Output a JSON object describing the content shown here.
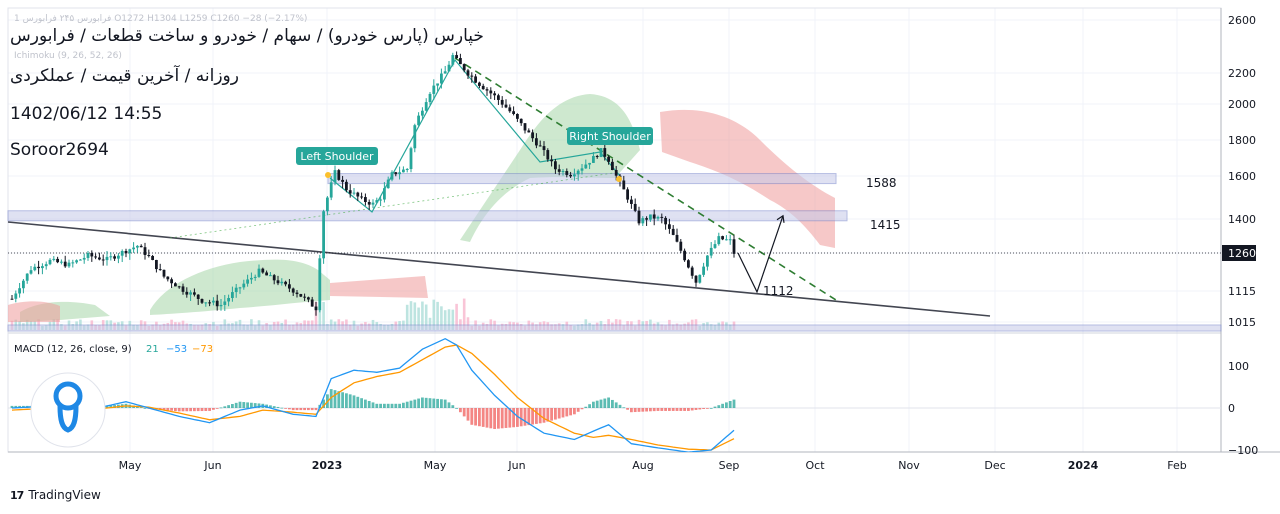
{
  "header": {
    "title": "خپارس (پارس خودرو) / سهام / خودرو و ساخت قطعات / فرابورس",
    "subtitle": "روزانه / آخرین قیمت / عملکردی",
    "timestamp": "1402/06/12 14:55",
    "author": "Soroor2694",
    "ohlc_line": "1 فرابورس ۲۴۵ فرابورس O1272 H1304 L1259 C1260 −28 (−2.17%)",
    "indicator_line": "Ichimoku (9, 26, 52, 26)"
  },
  "branding": {
    "name": "TradingView",
    "logo_glyph": "17"
  },
  "colors": {
    "up": "#26a69a",
    "down": "#131722",
    "trendline": "#434651",
    "dashed": "#2e7d32",
    "zone": "#c5cae9",
    "cloud_green": "#a5d6a7",
    "cloud_red": "#ef9a9a",
    "badge": "#26a69a",
    "macd": "#2196f3",
    "signal": "#ff9800",
    "hist_up": "#26a69a",
    "hist_down": "#ef5350"
  },
  "chart_data": [
    {
      "type": "candlestick",
      "price_axis": {
        "ticks": [
          1015,
          1115,
          1260,
          1400,
          1600,
          1800,
          2000,
          2200,
          2600
        ],
        "current_price": 1260
      },
      "time_axis": [
        "May",
        "Jun",
        "2023",
        "May",
        "Jun",
        "Aug",
        "Sep",
        "Oct",
        "Nov",
        "Dec",
        "2024",
        "Feb"
      ],
      "price_path": [
        [
          0,
          1090
        ],
        [
          5,
          1200
        ],
        [
          10,
          1230
        ],
        [
          15,
          1215
        ],
        [
          20,
          1250
        ],
        [
          25,
          1235
        ],
        [
          30,
          1270
        ],
        [
          33,
          1290
        ],
        [
          36,
          1245
        ],
        [
          40,
          1170
        ],
        [
          45,
          1120
        ],
        [
          50,
          1085
        ],
        [
          55,
          1070
        ],
        [
          60,
          1130
        ],
        [
          65,
          1190
        ],
        [
          70,
          1150
        ],
        [
          75,
          1110
        ],
        [
          80,
          1060
        ],
        [
          82,
          1440
        ],
        [
          85,
          1620
        ],
        [
          88,
          1540
        ],
        [
          92,
          1490
        ],
        [
          95,
          1470
        ],
        [
          97,
          1500
        ],
        [
          100,
          1610
        ],
        [
          104,
          1640
        ],
        [
          106,
          1880
        ],
        [
          110,
          2080
        ],
        [
          114,
          2210
        ],
        [
          116,
          2330
        ],
        [
          118,
          2260
        ],
        [
          120,
          2200
        ],
        [
          123,
          2130
        ],
        [
          127,
          2050
        ],
        [
          131,
          1960
        ],
        [
          135,
          1860
        ],
        [
          139,
          1760
        ],
        [
          143,
          1640
        ],
        [
          147,
          1610
        ],
        [
          150,
          1650
        ],
        [
          153,
          1700
        ],
        [
          155,
          1740
        ],
        [
          157,
          1690
        ],
        [
          159,
          1600
        ],
        [
          162,
          1500
        ],
        [
          165,
          1390
        ],
        [
          168,
          1410
        ],
        [
          171,
          1400
        ],
        [
          174,
          1330
        ],
        [
          177,
          1240
        ],
        [
          180,
          1150
        ],
        [
          183,
          1250
        ],
        [
          186,
          1320
        ],
        [
          189,
          1310
        ],
        [
          190,
          1260
        ]
      ],
      "annotations": [
        {
          "text": "Left Shoulder"
        },
        {
          "text": "Right Shoulder"
        },
        {
          "text": "1588"
        },
        {
          "text": "1415"
        },
        {
          "text": "1112"
        }
      ],
      "zones": [
        1588,
        1415
      ],
      "projection": [
        1260,
        1112,
        1415
      ]
    },
    {
      "type": "line",
      "title": "MACD (12, 26, close, 9)",
      "values_text": [
        "21",
        "−53",
        "−73"
      ],
      "y_ticks": [
        100,
        0,
        -100
      ],
      "macd": [
        [
          0,
          0
        ],
        [
          10,
          5
        ],
        [
          20,
          -5
        ],
        [
          30,
          15
        ],
        [
          36,
          0
        ],
        [
          44,
          -20
        ],
        [
          52,
          -35
        ],
        [
          60,
          -5
        ],
        [
          66,
          5
        ],
        [
          74,
          -15
        ],
        [
          80,
          -20
        ],
        [
          84,
          70
        ],
        [
          90,
          90
        ],
        [
          96,
          85
        ],
        [
          102,
          95
        ],
        [
          108,
          140
        ],
        [
          114,
          165
        ],
        [
          117,
          150
        ],
        [
          121,
          90
        ],
        [
          127,
          30
        ],
        [
          133,
          -20
        ],
        [
          140,
          -60
        ],
        [
          148,
          -75
        ],
        [
          153,
          -55
        ],
        [
          157,
          -40
        ],
        [
          163,
          -85
        ],
        [
          170,
          -95
        ],
        [
          178,
          -105
        ],
        [
          184,
          -100
        ],
        [
          190,
          -53
        ]
      ],
      "signal": [
        [
          0,
          -5
        ],
        [
          10,
          0
        ],
        [
          20,
          -5
        ],
        [
          30,
          5
        ],
        [
          36,
          2
        ],
        [
          44,
          -12
        ],
        [
          52,
          -28
        ],
        [
          60,
          -20
        ],
        [
          66,
          -5
        ],
        [
          74,
          -10
        ],
        [
          80,
          -15
        ],
        [
          84,
          25
        ],
        [
          90,
          60
        ],
        [
          96,
          75
        ],
        [
          102,
          85
        ],
        [
          108,
          115
        ],
        [
          114,
          145
        ],
        [
          117,
          150
        ],
        [
          121,
          130
        ],
        [
          127,
          80
        ],
        [
          133,
          25
        ],
        [
          140,
          -25
        ],
        [
          148,
          -60
        ],
        [
          153,
          -70
        ],
        [
          157,
          -65
        ],
        [
          163,
          -75
        ],
        [
          170,
          -88
        ],
        [
          178,
          -98
        ],
        [
          184,
          -100
        ],
        [
          190,
          -73
        ]
      ]
    }
  ]
}
